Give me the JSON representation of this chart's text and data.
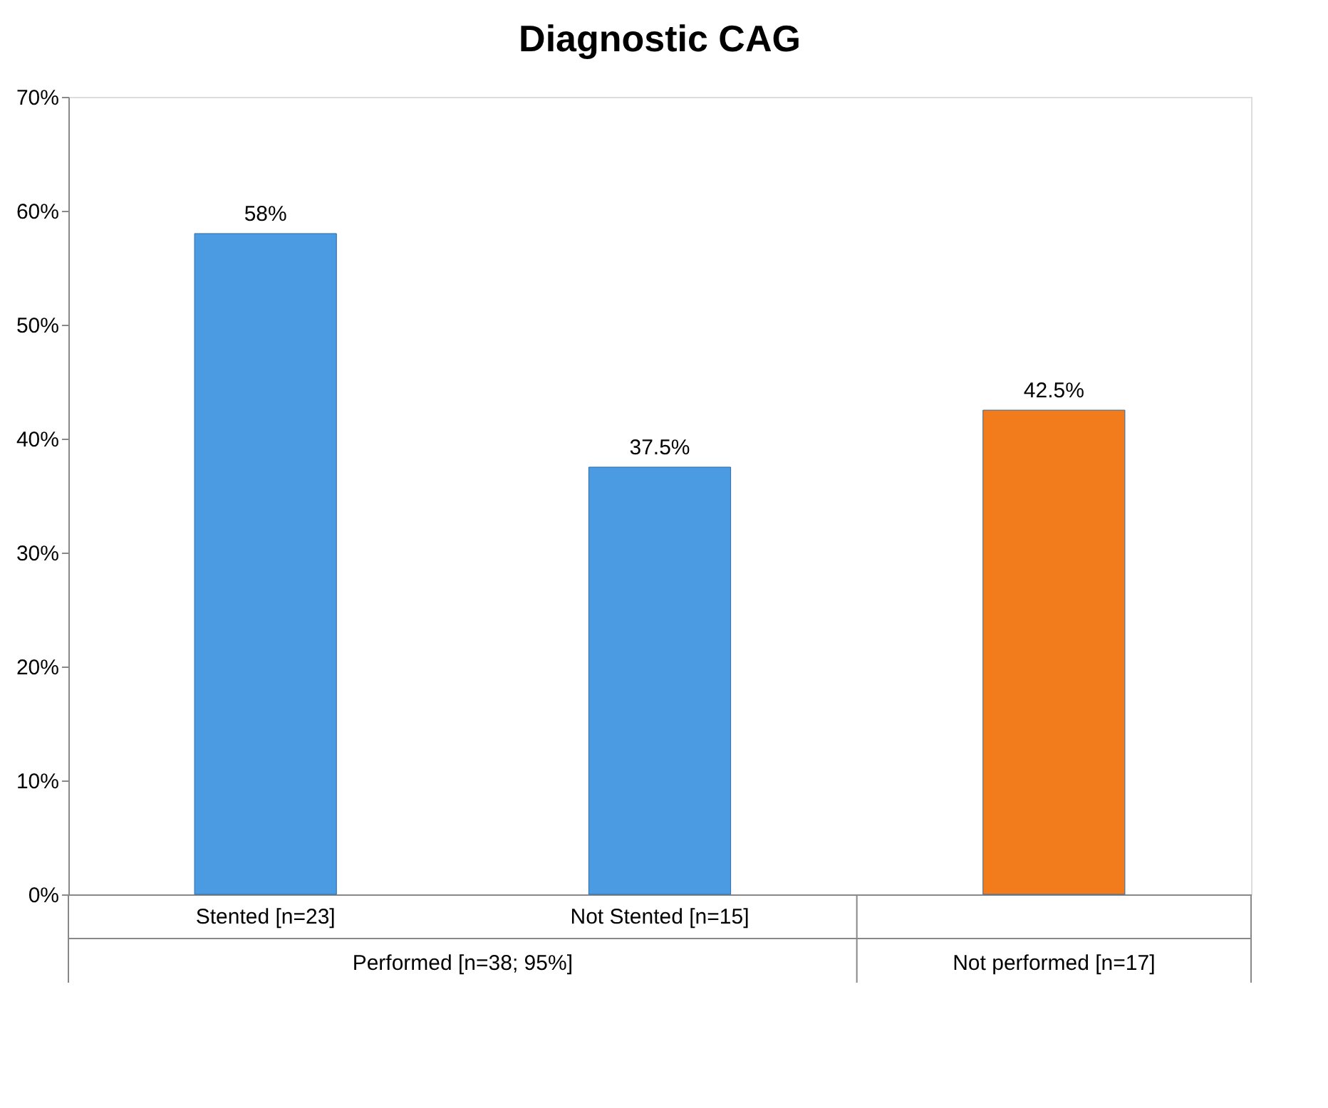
{
  "chart_data": {
    "type": "bar",
    "title": "Diagnostic CAG",
    "categories": [
      "Stented [n=23]",
      "Not Stented [n=15]",
      null
    ],
    "values": [
      58,
      37.5,
      42.5
    ],
    "colors": [
      "#4a9be2",
      "#4a9be2",
      "#f27c1c"
    ],
    "value_labels": [
      "58%",
      "37.5%",
      "42.5%"
    ],
    "ylim": [
      0,
      70
    ],
    "yticks": [
      {
        "value": 0,
        "label": "0%"
      },
      {
        "value": 10,
        "label": "10%"
      },
      {
        "value": 20,
        "label": "20%"
      },
      {
        "value": 30,
        "label": "30%"
      },
      {
        "value": 40,
        "label": "40%"
      },
      {
        "value": 50,
        "label": "50%"
      },
      {
        "value": 60,
        "label": "60%"
      },
      {
        "value": 70,
        "label": "70%"
      }
    ],
    "grid": false,
    "annotations": [
      "Performed [n=38; 95%]",
      "Not performed [n=17]"
    ]
  }
}
